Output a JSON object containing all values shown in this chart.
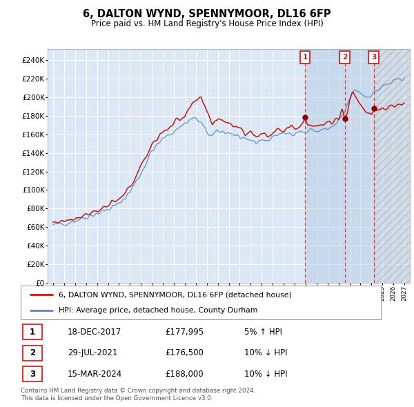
{
  "title": "6, DALTON WYND, SPENNYMOOR, DL16 6FP",
  "subtitle": "Price paid vs. HM Land Registry's House Price Index (HPI)",
  "legend_line1": "6, DALTON WYND, SPENNYMOOR, DL16 6FP (detached house)",
  "legend_line2": "HPI: Average price, detached house, County Durham",
  "sale_dates_dec": [
    2017.96,
    2021.57,
    2024.21
  ],
  "sale_prices": [
    177995,
    176500,
    188000
  ],
  "sale_labels": [
    "1",
    "2",
    "3"
  ],
  "table_rows": [
    [
      "1",
      "18-DEC-2017",
      "£177,995",
      "5% ↑ HPI"
    ],
    [
      "2",
      "29-JUL-2021",
      "£176,500",
      "10% ↓ HPI"
    ],
    [
      "3",
      "15-MAR-2024",
      "£188,000",
      "10% ↓ HPI"
    ]
  ],
  "footnote1": "Contains HM Land Registry data © Crown copyright and database right 2024.",
  "footnote2": "This data is licensed under the Open Government Licence v3.0.",
  "yticks": [
    0,
    20000,
    40000,
    60000,
    80000,
    100000,
    120000,
    140000,
    160000,
    180000,
    200000,
    220000,
    240000
  ],
  "xmin": 1994.5,
  "xmax": 2027.5,
  "ymin": 0,
  "ymax": 252000,
  "hatch_start": 2024.21,
  "blue_shade_start": 2017.96,
  "chart_bg": "#dce8f5",
  "hatch_color": "#c5cfd8",
  "red_line": "#cc1111",
  "blue_line": "#5588bb",
  "dot_color": "#880000"
}
